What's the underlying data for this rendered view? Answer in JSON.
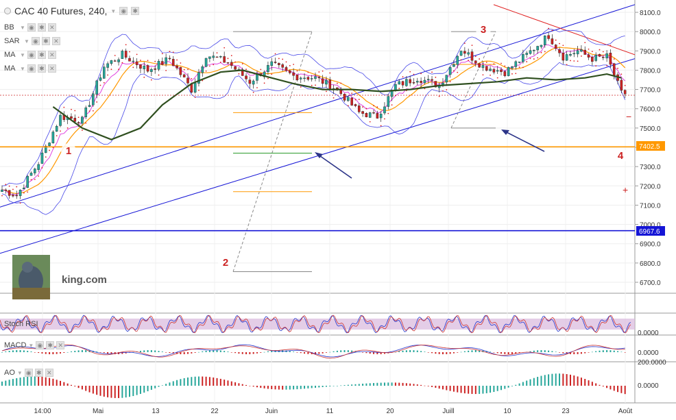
{
  "header": {
    "title": "CAC 40 Futures, 240,"
  },
  "indicators": [
    "BB",
    "SAR",
    "MA",
    "MA"
  ],
  "sub_panels": {
    "stoch_rsi": "Stoch RSI",
    "macd": "MACD",
    "ao": "AO"
  },
  "watermark": "king.com",
  "price_labels": {
    "orange_level": "7402.5",
    "blue_level": "6967.6"
  },
  "wave_labels": [
    "1",
    "2",
    "3",
    "4"
  ],
  "colors": {
    "up_candle": "#26a69a",
    "down_candle": "#cc2222",
    "orange_line": "#ff9800",
    "blue_line": "#1515d6",
    "red_trend": "#e02020",
    "ma_long": "#2f4f1f",
    "bollinger": "#4848e8"
  },
  "chart_data": {
    "type": "candlestick",
    "y_axis_ticks": [
      8100,
      8000,
      7900,
      7800,
      7700,
      7600,
      7500,
      7400,
      7300,
      7200,
      7100,
      7000,
      6900,
      6800,
      6700
    ],
    "y_axis_labels": [
      "8100.0",
      "8000.0",
      "7900.0",
      "7800.0",
      "7700.0",
      "7600.0",
      "7500.0",
      "7400.0",
      "7300.0",
      "7200.0",
      "7100.0",
      "7000.0",
      "6900.0",
      "6800.0",
      "6700.0"
    ],
    "ylim": [
      6650,
      8150
    ],
    "x_tick_labels": [
      "14:00",
      "Mai",
      "13",
      "22",
      "Juin",
      "11",
      "20",
      "Juill",
      "10",
      "23",
      "Août"
    ],
    "horizontal_levels": [
      {
        "value": 7402.5,
        "label": "7402.5"
      },
      {
        "value": 6967.6,
        "label": "6967.6"
      }
    ],
    "price_path": [
      [
        0,
        7180
      ],
      [
        4,
        7150
      ],
      [
        10,
        7320
      ],
      [
        16,
        7560
      ],
      [
        22,
        7540
      ],
      [
        28,
        7820
      ],
      [
        33,
        7880
      ],
      [
        40,
        7800
      ],
      [
        46,
        7860
      ],
      [
        52,
        7700
      ],
      [
        56,
        7880
      ],
      [
        62,
        7840
      ],
      [
        68,
        7740
      ],
      [
        74,
        7830
      ],
      [
        80,
        7770
      ],
      [
        86,
        7760
      ],
      [
        92,
        7700
      ],
      [
        98,
        7580
      ],
      [
        103,
        7560
      ],
      [
        108,
        7720
      ],
      [
        114,
        7760
      ],
      [
        120,
        7720
      ],
      [
        126,
        7910
      ],
      [
        132,
        7820
      ],
      [
        138,
        7790
      ],
      [
        144,
        7880
      ],
      [
        150,
        7980
      ],
      [
        154,
        7870
      ],
      [
        158,
        7900
      ],
      [
        162,
        7860
      ],
      [
        166,
        7870
      ],
      [
        170,
        7680
      ]
    ],
    "ma_long_path": [
      [
        14,
        7610
      ],
      [
        22,
        7500
      ],
      [
        30,
        7440
      ],
      [
        38,
        7500
      ],
      [
        44,
        7620
      ],
      [
        52,
        7730
      ],
      [
        60,
        7790
      ],
      [
        66,
        7800
      ],
      [
        72,
        7770
      ],
      [
        80,
        7730
      ],
      [
        88,
        7700
      ],
      [
        96,
        7700
      ],
      [
        104,
        7690
      ],
      [
        112,
        7700
      ],
      [
        120,
        7720
      ],
      [
        128,
        7730
      ],
      [
        136,
        7740
      ],
      [
        144,
        7760
      ],
      [
        152,
        7750
      ],
      [
        160,
        7760
      ],
      [
        166,
        7780
      ],
      [
        170,
        7760
      ]
    ],
    "sub_values": {
      "stoch_rsi": "",
      "macd": "0.0000",
      "macd_upper": "200.0000",
      "ao": "0.0000",
      "ao_low": "0.0000"
    }
  }
}
